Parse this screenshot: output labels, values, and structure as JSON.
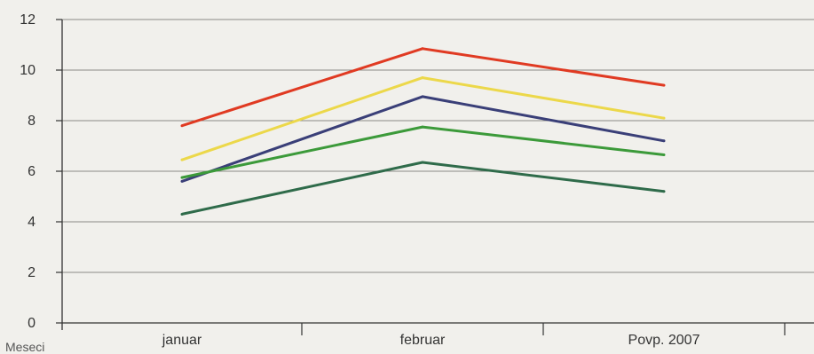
{
  "chart_data": {
    "type": "line",
    "title": "",
    "xlabel": "Meseci",
    "ylabel": "",
    "categories": [
      "januar",
      "februar",
      "Povp. 2007"
    ],
    "ylim": [
      0,
      12
    ],
    "yticks": [
      "0",
      "2",
      "4",
      "6",
      "8",
      "10",
      "12"
    ],
    "grid": true,
    "legend": "none",
    "series": [
      {
        "color": "#e03a22",
        "values": [
          7.8,
          10.85,
          9.4
        ]
      },
      {
        "color": "#ecd84a",
        "values": [
          6.45,
          9.7,
          8.1
        ]
      },
      {
        "color": "#3a3f78",
        "values": [
          5.6,
          8.95,
          7.2
        ]
      },
      {
        "color": "#3c9a3a",
        "values": [
          5.75,
          7.75,
          6.65
        ]
      },
      {
        "color": "#2f6b4a",
        "values": [
          4.3,
          6.35,
          5.2
        ]
      }
    ]
  }
}
